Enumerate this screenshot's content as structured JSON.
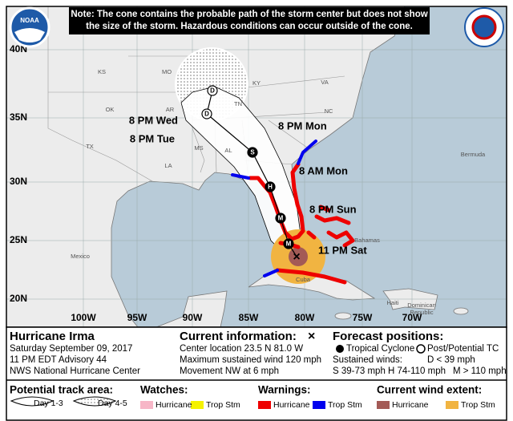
{
  "note": [
    "Note: The cone contains the probable path of the storm center but does not show",
    "the size of the storm. Hazardous conditions can occur outside of the cone."
  ],
  "logo": {
    "noaa": "NOAA"
  },
  "map": {
    "lat_labels": [
      "40N",
      "35N",
      "30N",
      "25N",
      "20N"
    ],
    "lon_labels": [
      "100W",
      "95W",
      "90W",
      "85W",
      "80W",
      "75W",
      "70W"
    ],
    "places": [
      "KS",
      "MO",
      "KY",
      "VA",
      "OK",
      "AR",
      "TN",
      "NC",
      "TX",
      "MS",
      "AL",
      "LA",
      "Mexico",
      "Bermuda",
      "Bahamas",
      "Cuba",
      "Haiti",
      "Dominican",
      "Republic"
    ],
    "time_labels": [
      "8 PM Wed",
      "8 PM Tue",
      "8 PM Mon",
      "8 AM Mon",
      "8 PM Sun",
      "11 PM Sat"
    ],
    "track_symbols": [
      "D",
      "D",
      "S",
      "H",
      "M",
      "M"
    ]
  },
  "storm": {
    "name": "Hurricane Irma",
    "date": "Saturday September 09, 2017",
    "advisory": "11 PM EDT Advisory 44",
    "office": "NWS National Hurricane Center"
  },
  "current": {
    "title": "Current information:",
    "symbol": "×",
    "lines": [
      "Center location 23.5 N 81.0 W",
      "Maximum sustained wind 120 mph",
      "Movement NW at 6 mph"
    ]
  },
  "forecast": {
    "title": "Forecast positions:",
    "tropical": "Tropical Cyclone",
    "post": "Post/Potential TC",
    "winds_title": "Sustained winds:",
    "d": "D < 39 mph",
    "s": "S 39-73 mph",
    "h": "H 74-110 mph",
    "m": "M > 110 mph"
  },
  "legend": {
    "track_title": "Potential track area:",
    "day13": "Day 1-3",
    "day45": "Day 4-5",
    "watches_title": "Watches:",
    "watch_hurricane": "Hurricane",
    "watch_tropstm": "Trop Stm",
    "warnings_title": "Warnings:",
    "warn_hurricane": "Hurricane",
    "warn_tropstm": "Trop Stm",
    "wind_title": "Current wind extent:",
    "wind_hurricane": "Hurricane",
    "wind_tropstm": "Trop Stm"
  }
}
